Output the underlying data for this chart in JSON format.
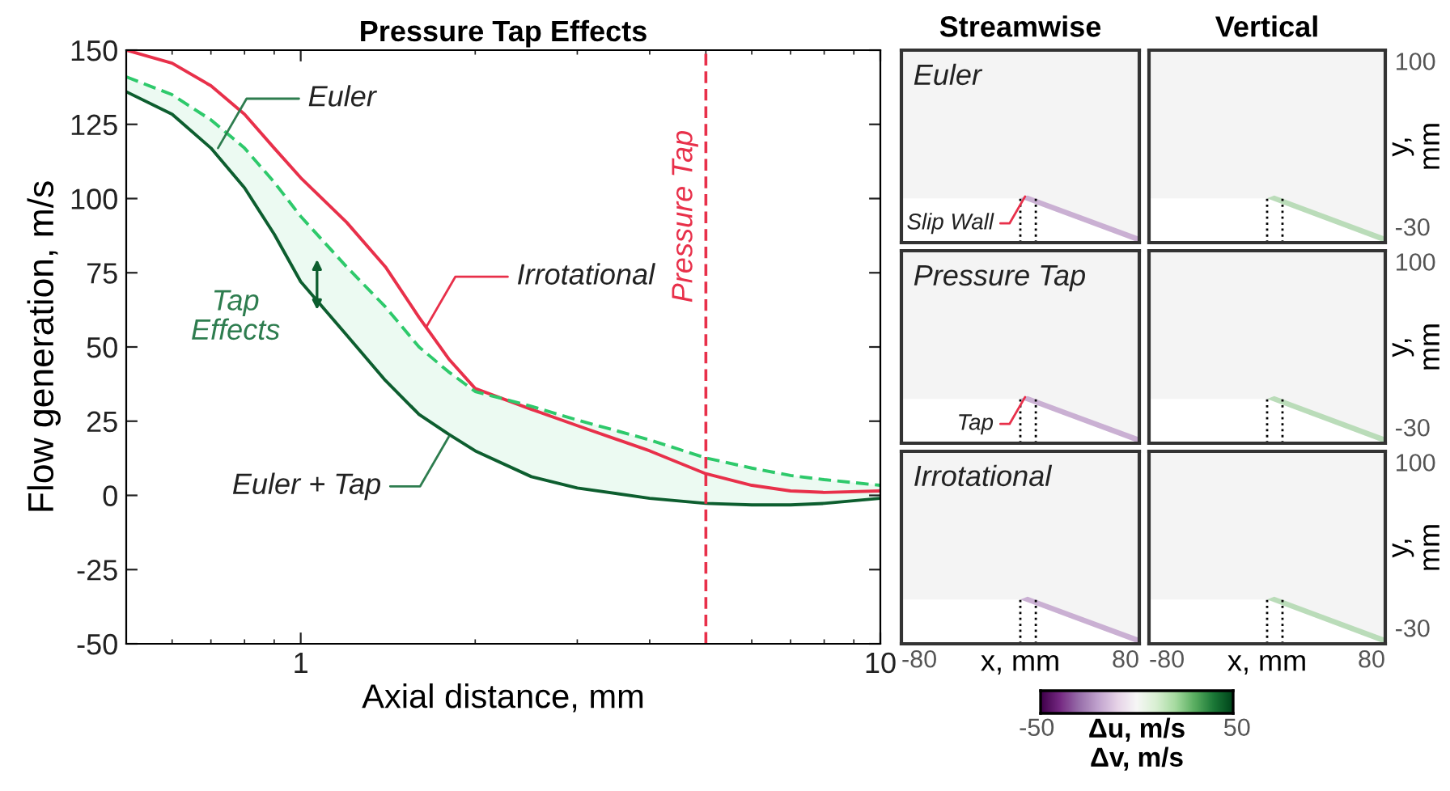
{
  "chart_data": [
    {
      "type": "line",
      "title": "Pressure Tap Effects",
      "xlabel": "Axial distance, mm",
      "ylabel": "Flow generation, m/s",
      "log": "x",
      "xlim": [
        0.5,
        10
      ],
      "xticks": [
        1,
        10
      ],
      "ylim": [
        -50,
        150
      ],
      "yticks": [
        -50,
        -25,
        0,
        25,
        50,
        75,
        100,
        125,
        150
      ],
      "x": [
        0.5,
        0.6,
        0.7,
        0.8,
        0.9,
        1.0,
        1.2,
        1.4,
        1.6,
        1.8,
        2,
        2.5,
        3,
        4,
        5,
        6,
        7,
        8,
        10
      ],
      "series": [
        {
          "color": "#e8304a",
          "line_style": "solid",
          "values": [
            150,
            145.6,
            138,
            128.4,
            117,
            107,
            92,
            77,
            60,
            46,
            36,
            29,
            23.5,
            15,
            7.3,
            3.4,
            1.5,
            1,
            1.5
          ]
        },
        {
          "color": "#2ec96b",
          "line_style": "dashed",
          "values": [
            141,
            135,
            126.5,
            117,
            105.5,
            94,
            77,
            63.5,
            50,
            41.6,
            35,
            30,
            25.4,
            18.7,
            12.6,
            9.2,
            6.7,
            5.3,
            3.4
          ],
          "lower": [
            136,
            128.4,
            117,
            103.6,
            88,
            72,
            54,
            38.7,
            27.3,
            20.6,
            15,
            6.3,
            2.5,
            -1,
            -2.7,
            -3.2,
            -3.2,
            -2.7,
            -1
          ],
          "upper": [
            141,
            135,
            126.5,
            117,
            105.5,
            94,
            77,
            63.5,
            50,
            41.6,
            35,
            30,
            25.4,
            18.7,
            12.6,
            9.2,
            6.7,
            5.3,
            3.4
          ]
        },
        {
          "color": "#0d5e2f",
          "line_style": "solid",
          "values": [
            136,
            128.4,
            117,
            103.6,
            88,
            72,
            54,
            38.7,
            27.3,
            20.6,
            15,
            6.3,
            2.5,
            -1,
            -2.7,
            -3.2,
            -3.2,
            -2.7,
            -1
          ]
        }
      ],
      "ref_lines": [
        {
          "axis": "x",
          "value": 5,
          "label": "Pressure Tap",
          "color": "#e8304a",
          "line_style": "dashed"
        }
      ],
      "annotations": [
        {
          "text": "Euler",
          "x": 0.72,
          "y": 117
        },
        {
          "text": "Irrotational",
          "x": 1.65,
          "y": 57
        },
        {
          "text": "Euler + Tap",
          "x": 1.8,
          "y": 19.7
        },
        "Tap Effects"
      ]
    },
    {
      "type": "other",
      "title": "Streamwise",
      "annotations": [
        "Euler",
        "Slip Wall"
      ]
    },
    {
      "type": "other",
      "title": "Vertical",
      "ylabel": "y, mm",
      "annotations": [
        "100",
        "-30"
      ]
    },
    {
      "type": "other",
      "annotations": [
        "Pressure Tap",
        "Tap"
      ]
    },
    {
      "type": "other",
      "ylabel": "y, mm",
      "annotations": [
        "100",
        "-30"
      ]
    },
    {
      "type": "other",
      "xlabel": "x, mm",
      "annotations": [
        "Irrotational",
        "-80",
        "80"
      ]
    },
    {
      "type": "other",
      "xlabel": "x, mm",
      "ylabel": "y, mm",
      "annotations": [
        "100",
        "-30",
        "-80",
        "80"
      ]
    },
    {
      "type": "other",
      "annotations": [
        "-50",
        "50",
        "Δu, m/s\nΔv, m/s"
      ]
    }
  ]
}
